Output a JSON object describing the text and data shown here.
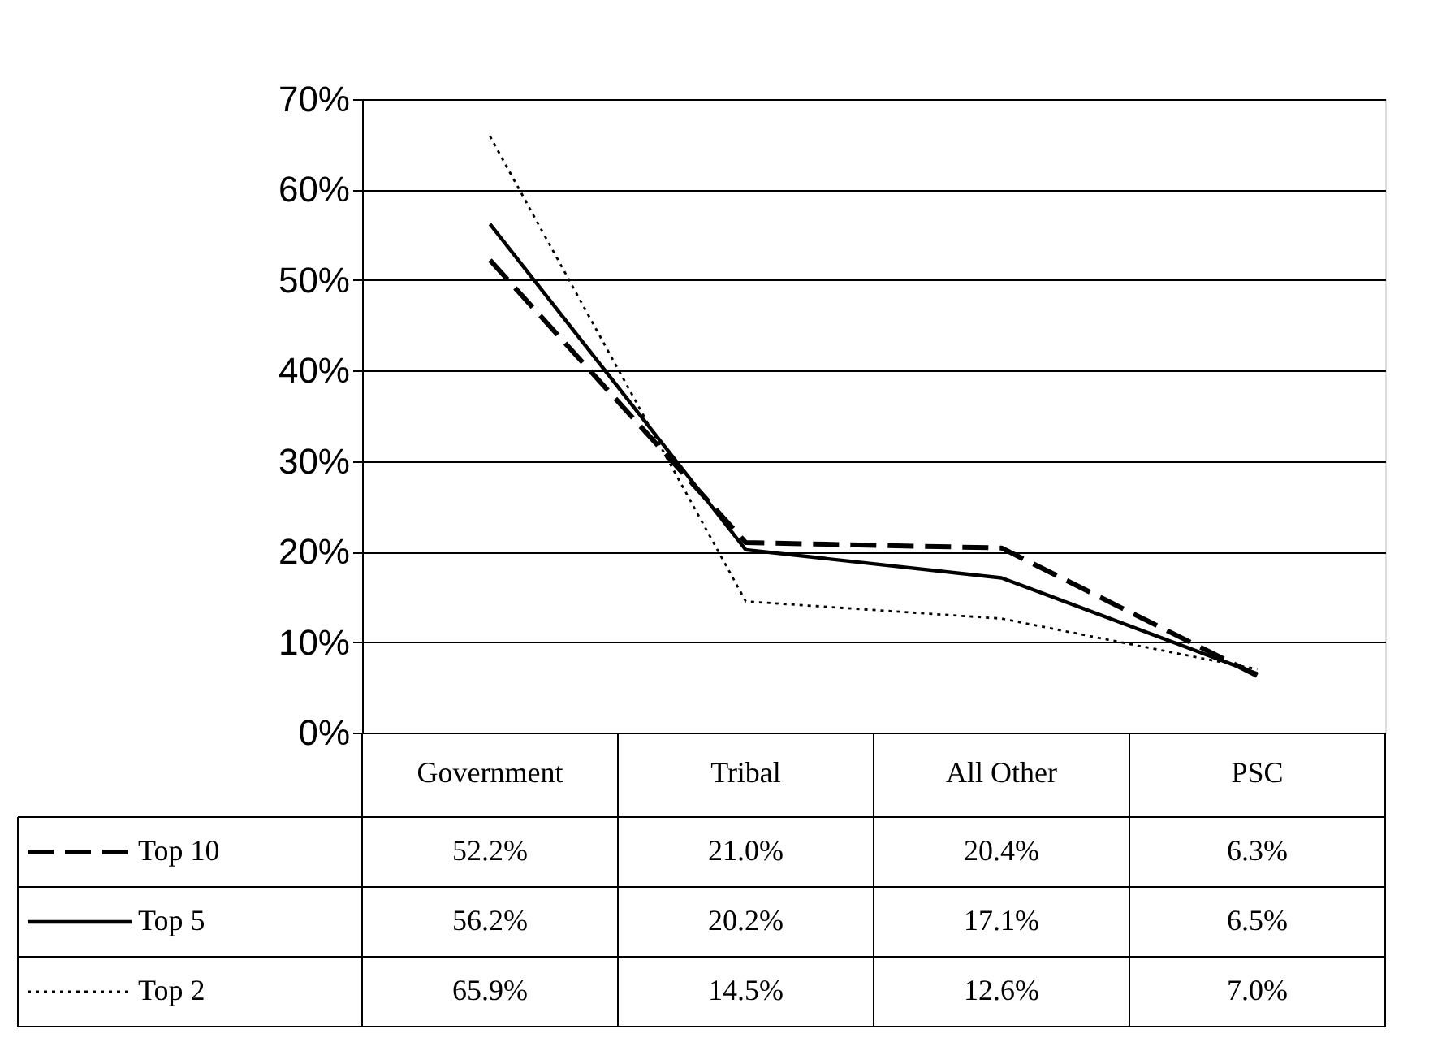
{
  "chart_data": {
    "type": "line",
    "categories": [
      "Government",
      "Tribal",
      "All Other",
      "PSC"
    ],
    "series": [
      {
        "name": "Top 10",
        "color": "#000000",
        "line_style": "dashed",
        "values": [
          52.2,
          21.0,
          20.4,
          6.3
        ],
        "value_labels": [
          "52.2%",
          "21.0%",
          "20.4%",
          "6.3%"
        ]
      },
      {
        "name": "Top 5",
        "color": "#000000",
        "line_style": "solid",
        "values": [
          56.2,
          20.2,
          17.1,
          6.5
        ],
        "value_labels": [
          "56.2%",
          "20.2%",
          "17.1%",
          "6.5%"
        ]
      },
      {
        "name": "Top 2",
        "color": "#000000",
        "line_style": "dotted",
        "values": [
          65.9,
          14.5,
          12.6,
          7.0
        ],
        "value_labels": [
          "65.9%",
          "14.5%",
          "12.6%",
          "7.0%"
        ]
      }
    ],
    "ylim": [
      0,
      70
    ],
    "yticks": [
      {
        "value": 0,
        "label": "0%"
      },
      {
        "value": 10,
        "label": "10%"
      },
      {
        "value": 20,
        "label": "20%"
      },
      {
        "value": 30,
        "label": "30%"
      },
      {
        "value": 40,
        "label": "40%"
      },
      {
        "value": 50,
        "label": "50%"
      },
      {
        "value": 60,
        "label": "60%"
      },
      {
        "value": 70,
        "label": "70%"
      }
    ],
    "grid": "y",
    "legend": "bottom left",
    "marker": "none"
  }
}
